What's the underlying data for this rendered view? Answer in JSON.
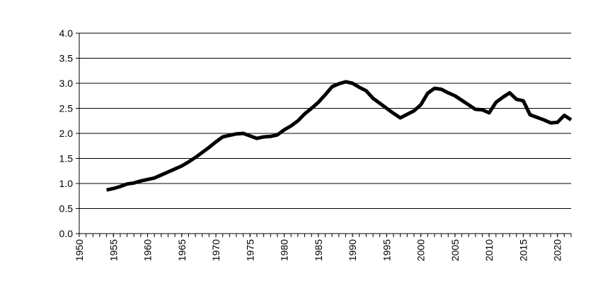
{
  "chart_data": {
    "type": "line",
    "x": [
      1954,
      1955,
      1956,
      1957,
      1958,
      1959,
      1960,
      1961,
      1962,
      1963,
      1964,
      1965,
      1966,
      1967,
      1968,
      1969,
      1970,
      1971,
      1972,
      1973,
      1974,
      1975,
      1976,
      1977,
      1978,
      1979,
      1980,
      1981,
      1982,
      1983,
      1984,
      1985,
      1986,
      1987,
      1988,
      1989,
      1990,
      1991,
      1992,
      1993,
      1994,
      1995,
      1996,
      1997,
      1998,
      1999,
      2000,
      2001,
      2002,
      2003,
      2004,
      2005,
      2006,
      2007,
      2008,
      2009,
      2010,
      2011,
      2012,
      2013,
      2014,
      2015,
      2016,
      2017,
      2018,
      2019,
      2020,
      2021,
      2022
    ],
    "series": [
      {
        "color": "#000000",
        "values": [
          0.87,
          0.9,
          0.94,
          0.99,
          1.01,
          1.05,
          1.08,
          1.11,
          1.17,
          1.23,
          1.29,
          1.35,
          1.43,
          1.52,
          1.62,
          1.72,
          1.83,
          1.93,
          1.96,
          1.99,
          2.0,
          1.95,
          1.9,
          1.93,
          1.94,
          1.97,
          2.07,
          2.15,
          2.25,
          2.39,
          2.5,
          2.62,
          2.77,
          2.93,
          2.99,
          3.03,
          3.0,
          2.92,
          2.85,
          2.7,
          2.6,
          2.5,
          2.4,
          2.31,
          2.38,
          2.45,
          2.57,
          2.8,
          2.9,
          2.88,
          2.81,
          2.75,
          2.66,
          2.57,
          2.48,
          2.47,
          2.41,
          2.62,
          2.72,
          2.81,
          2.68,
          2.65,
          2.37,
          2.32,
          2.27,
          2.21,
          2.22,
          2.36,
          2.27
        ]
      }
    ],
    "xlim": [
      1950,
      2022
    ],
    "xticks": [
      1950,
      1955,
      1960,
      1965,
      1970,
      1975,
      1980,
      1985,
      1990,
      1995,
      2000,
      2005,
      2010,
      2015,
      2020
    ],
    "ylim": [
      0,
      4
    ],
    "yticks": [
      {
        "value": 0,
        "label": "0.0"
      },
      {
        "value": 0.5,
        "label": "0.5"
      },
      {
        "value": 1,
        "label": "1.0"
      },
      {
        "value": 1.5,
        "label": "1.5"
      },
      {
        "value": 2,
        "label": "2.0"
      },
      {
        "value": 2.5,
        "label": "2.5"
      },
      {
        "value": 3,
        "label": "3.0"
      },
      {
        "value": 3.5,
        "label": "3.5"
      },
      {
        "value": 4,
        "label": "4.0"
      }
    ],
    "grid": true
  }
}
